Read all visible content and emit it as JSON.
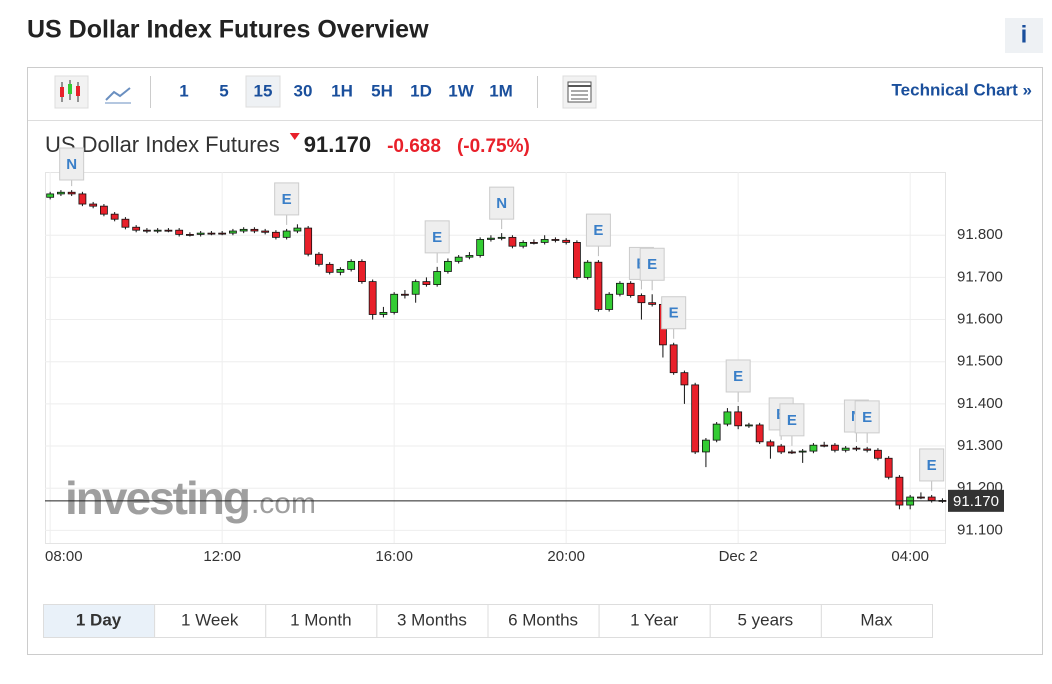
{
  "page_title": "US Dollar Index Futures Overview",
  "info_icon": "i",
  "toolbar": {
    "intervals": [
      "1",
      "5",
      "15",
      "30",
      "1H",
      "5H",
      "1D",
      "1W",
      "1M"
    ],
    "selected": "15",
    "link": "Technical Chart »"
  },
  "chart_data": {
    "type": "candlestick",
    "title": "US Dollar Index Futures",
    "last_price": {
      "value": 91.17,
      "label": "91.170"
    },
    "change": "-0.688",
    "change_percent": "(-0.75%)",
    "watermark": "investing",
    "watermark_suffix": ".com",
    "up_color": "#33cc33",
    "down_color": "#e8202a",
    "grid": true,
    "xlim": [
      7.88,
      28.81
    ],
    "ylim": [
      91.07,
      91.95
    ],
    "xticks": [
      {
        "value": 8,
        "label": "08:00"
      },
      {
        "value": 12,
        "label": "12:00"
      },
      {
        "value": 16,
        "label": "16:00"
      },
      {
        "value": 20,
        "label": "20:00"
      },
      {
        "value": 24,
        "label": "Dec 2"
      },
      {
        "value": 28,
        "label": "04:00"
      }
    ],
    "yticks": [
      {
        "value": 91.1,
        "label": "91.100"
      },
      {
        "value": 91.2,
        "label": "91.200"
      },
      {
        "value": 91.3,
        "label": "91.300"
      },
      {
        "value": 91.4,
        "label": "91.400"
      },
      {
        "value": 91.5,
        "label": "91.500"
      },
      {
        "value": 91.6,
        "label": "91.600"
      },
      {
        "value": 91.7,
        "label": "91.700"
      },
      {
        "value": 91.8,
        "label": "91.800"
      }
    ],
    "x": [
      8,
      8.25,
      8.5,
      8.75,
      9,
      9.25,
      9.5,
      9.75,
      10,
      10.25,
      10.5,
      10.75,
      11,
      11.25,
      11.5,
      11.75,
      12,
      12.25,
      12.5,
      12.75,
      13,
      13.25,
      13.5,
      13.75,
      14,
      14.25,
      14.5,
      14.75,
      15,
      15.25,
      15.5,
      15.75,
      16,
      16.25,
      16.5,
      16.75,
      17,
      17.25,
      17.5,
      17.75,
      18,
      18.25,
      18.5,
      18.75,
      19,
      19.25,
      19.5,
      19.75,
      20,
      20.25,
      20.5,
      20.75,
      21,
      21.25,
      21.5,
      21.75,
      22,
      22.25,
      22.5,
      22.75,
      23,
      23.25,
      23.5,
      23.75,
      24,
      24.25,
      24.5,
      24.75,
      25,
      25.25,
      25.5,
      25.75,
      26,
      26.25,
      26.5,
      26.75,
      27,
      27.25,
      27.5,
      27.75,
      28,
      28.25,
      28.5,
      28.75
    ],
    "open": [
      91.89,
      91.898,
      91.902,
      91.898,
      91.874,
      91.869,
      91.85,
      91.838,
      91.819,
      91.812,
      91.81,
      91.812,
      91.812,
      91.802,
      91.802,
      91.805,
      91.805,
      91.805,
      91.81,
      91.814,
      91.81,
      91.807,
      91.795,
      91.81,
      91.817,
      91.755,
      91.731,
      91.712,
      91.719,
      91.738,
      91.69,
      91.612,
      91.617,
      91.66,
      91.66,
      91.69,
      91.683,
      91.714,
      91.738,
      91.748,
      91.752,
      91.79,
      91.793,
      91.795,
      91.774,
      91.783,
      91.783,
      91.79,
      91.788,
      91.783,
      91.7,
      91.736,
      91.624,
      91.66,
      91.686,
      91.657,
      91.64,
      91.636,
      91.54,
      91.474,
      91.445,
      91.286,
      91.314,
      91.352,
      91.381,
      91.348,
      91.35,
      91.31,
      91.3,
      91.286,
      91.286,
      91.288,
      91.302,
      91.302,
      91.29,
      91.295,
      91.293,
      91.29,
      91.271,
      91.226,
      91.16,
      91.179,
      91.179,
      91.171
    ],
    "high": [
      91.903,
      91.907,
      91.907,
      91.903,
      91.879,
      91.874,
      91.855,
      91.843,
      91.824,
      91.817,
      91.817,
      91.817,
      91.817,
      91.807,
      91.81,
      91.81,
      91.81,
      91.815,
      91.819,
      91.819,
      91.815,
      91.812,
      91.815,
      91.826,
      91.822,
      91.76,
      91.736,
      91.724,
      91.743,
      91.743,
      91.695,
      91.63,
      91.665,
      91.67,
      91.695,
      91.7,
      91.725,
      91.745,
      91.753,
      91.76,
      91.795,
      91.8,
      91.805,
      91.8,
      91.788,
      91.79,
      91.8,
      91.795,
      91.793,
      91.788,
      91.741,
      91.741,
      91.665,
      91.691,
      91.691,
      91.662,
      91.66,
      91.641,
      91.545,
      91.479,
      91.45,
      91.319,
      91.357,
      91.39,
      91.395,
      91.355,
      91.355,
      91.315,
      91.305,
      91.291,
      91.293,
      91.307,
      91.31,
      91.307,
      91.3,
      91.3,
      91.298,
      91.295,
      91.276,
      91.231,
      91.184,
      91.19,
      91.184,
      91.176
    ],
    "low": [
      91.885,
      91.893,
      91.893,
      91.869,
      91.864,
      91.845,
      91.833,
      91.814,
      91.807,
      91.805,
      91.805,
      91.807,
      91.797,
      91.797,
      91.797,
      91.8,
      91.8,
      91.8,
      91.805,
      91.805,
      91.802,
      91.79,
      91.79,
      91.805,
      91.75,
      91.726,
      91.707,
      91.705,
      91.714,
      91.685,
      91.6,
      91.605,
      91.612,
      91.65,
      91.64,
      91.678,
      91.678,
      91.709,
      91.733,
      91.743,
      91.747,
      91.785,
      91.788,
      91.769,
      91.769,
      91.778,
      91.778,
      91.783,
      91.778,
      91.695,
      91.695,
      91.619,
      91.619,
      91.655,
      91.652,
      91.6,
      91.631,
      91.51,
      91.469,
      91.4,
      91.281,
      91.25,
      91.309,
      91.347,
      91.34,
      91.343,
      91.305,
      91.27,
      91.281,
      91.281,
      91.26,
      91.283,
      91.297,
      91.285,
      91.285,
      91.288,
      91.285,
      91.266,
      91.221,
      91.15,
      91.15,
      91.174,
      91.166,
      91.165
    ],
    "close": [
      91.898,
      91.902,
      91.898,
      91.874,
      91.869,
      91.85,
      91.838,
      91.819,
      91.812,
      91.81,
      91.812,
      91.812,
      91.802,
      91.802,
      91.805,
      91.805,
      91.805,
      91.81,
      91.814,
      91.81,
      91.807,
      91.795,
      91.81,
      91.817,
      91.755,
      91.731,
      91.712,
      91.719,
      91.738,
      91.69,
      91.612,
      91.617,
      91.66,
      91.66,
      91.69,
      91.683,
      91.714,
      91.738,
      91.748,
      91.752,
      91.79,
      91.793,
      91.795,
      91.774,
      91.783,
      91.783,
      91.79,
      91.788,
      91.783,
      91.7,
      91.736,
      91.624,
      91.66,
      91.686,
      91.657,
      91.64,
      91.636,
      91.54,
      91.474,
      91.445,
      91.286,
      91.314,
      91.352,
      91.381,
      91.348,
      91.35,
      91.31,
      91.3,
      91.286,
      91.286,
      91.288,
      91.302,
      91.302,
      91.29,
      91.295,
      91.293,
      91.29,
      91.271,
      91.226,
      91.16,
      91.179,
      91.179,
      91.171,
      91.17
    ],
    "events": [
      {
        "x": 8.5,
        "label": "N"
      },
      {
        "x": 13.5,
        "label": "E"
      },
      {
        "x": 17,
        "label": "E"
      },
      {
        "x": 18.5,
        "label": "N"
      },
      {
        "x": 20.75,
        "label": "E"
      },
      {
        "x": 21.75,
        "label": "E"
      },
      {
        "x": 22,
        "label": "E"
      },
      {
        "x": 22.5,
        "label": "E"
      },
      {
        "x": 24,
        "label": "E"
      },
      {
        "x": 25,
        "label": "E"
      },
      {
        "x": 25.25,
        "label": "E"
      },
      {
        "x": 26.75,
        "label": "N"
      },
      {
        "x": 27,
        "label": "E"
      },
      {
        "x": 28.5,
        "label": "E"
      }
    ]
  },
  "ranges": [
    "1 Day",
    "1 Week",
    "1 Month",
    "3 Months",
    "6 Months",
    "1 Year",
    "5 years",
    "Max"
  ],
  "selected_range": "1 Day"
}
